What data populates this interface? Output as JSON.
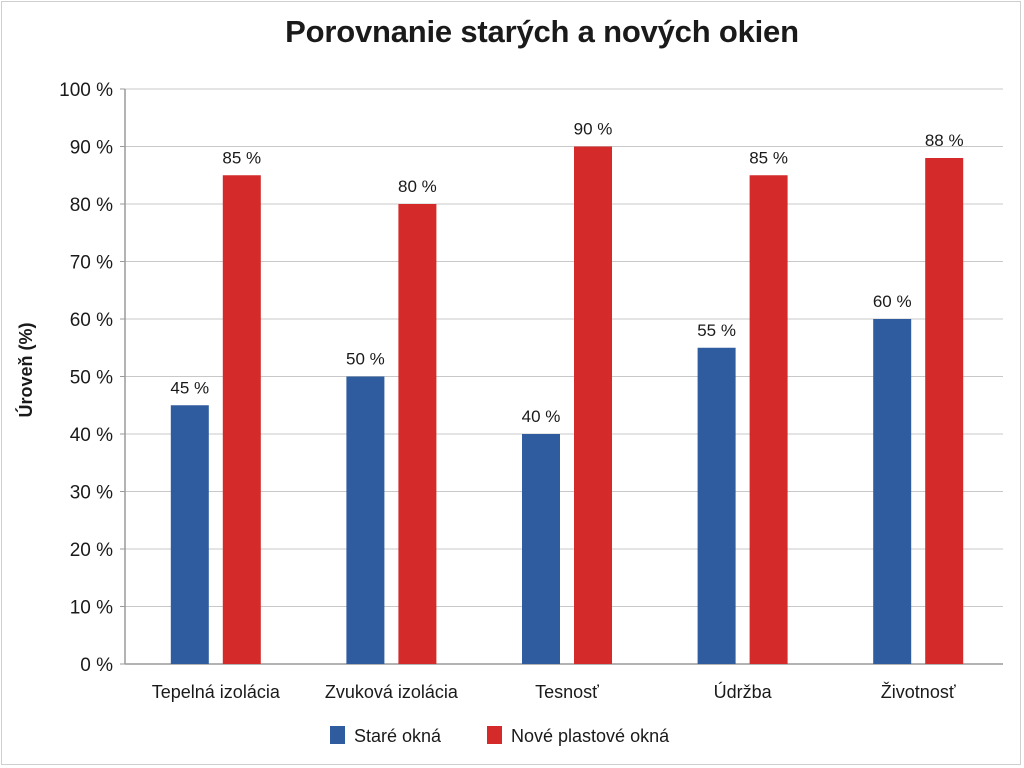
{
  "chart_data": {
    "type": "bar",
    "title": "Porovnanie starých a nových okien",
    "ylabel": "Úroveň (%)",
    "xlabel": "",
    "ylim": [
      0,
      100
    ],
    "y_ticks": [
      "0 %",
      "10 %",
      "20 %",
      "30 %",
      "40 %",
      "50 %",
      "60 %",
      "70 %",
      "80 %",
      "90 %",
      "100 %"
    ],
    "categories": [
      "Tepelná izolácia",
      "Zvuková izolácia",
      "Tesnosť",
      "Údržba",
      "Životnosť"
    ],
    "series": [
      {
        "name": "Staré okná",
        "color": "#2e5c9e",
        "values": [
          45,
          50,
          40,
          55,
          60
        ],
        "labels": [
          "45 %",
          "50 %",
          "40 %",
          "55 %",
          "60 %"
        ]
      },
      {
        "name": "Nové plastové okná",
        "color": "#d42a2a",
        "values": [
          85,
          80,
          90,
          85,
          88
        ],
        "labels": [
          "85 %",
          "80 %",
          "90 %",
          "85 %",
          "88 %"
        ]
      }
    ],
    "grid": true,
    "legend_position": "bottom"
  }
}
